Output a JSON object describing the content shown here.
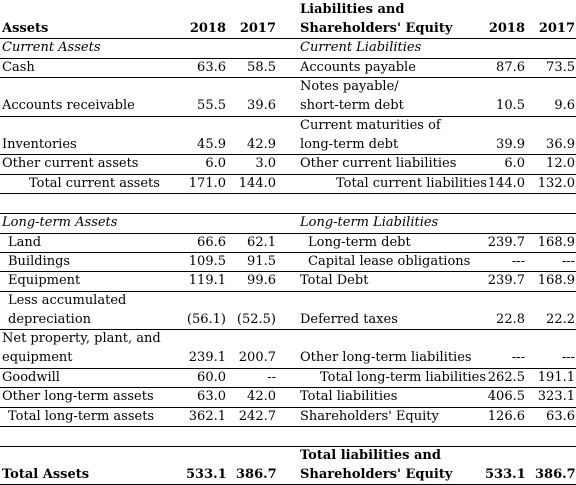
{
  "headers": {
    "assets": "Assets",
    "liab_line1": "Liabilities and",
    "liab_line2": "Shareholders' Equity",
    "y2018": "2018",
    "y2017": "2017"
  },
  "left_rows": [
    {
      "label": "Current Assets",
      "v18": "",
      "v17": ""
    },
    {
      "label": "Cash",
      "v18": "63.6",
      "v17": "58.5"
    },
    {
      "label": "Accounts receivable",
      "v18": "55.5",
      "v17": "39.6"
    },
    {
      "label": "Inventories",
      "v18": "45.9",
      "v17": "42.9"
    },
    {
      "label": "Other current assets",
      "v18": "6.0",
      "v17": "3.0"
    },
    {
      "label": "Total current assets",
      "v18": "171.0",
      "v17": "144.0"
    },
    {
      "label": "Long-term Assets",
      "v18": "",
      "v17": ""
    },
    {
      "label": "Land",
      "v18": "66.6",
      "v17": "62.1"
    },
    {
      "label": "Buildings",
      "v18": "109.5",
      "v17": "91.5"
    },
    {
      "label": "Equipment",
      "v18": "119.1",
      "v17": "99.6"
    },
    {
      "label": "Less accumulated",
      "v18": "",
      "v17": ""
    },
    {
      "label": "depreciation",
      "v18": "(56.1)",
      "v17": "(52.5)"
    },
    {
      "label": "Net property, plant, and",
      "v18": "",
      "v17": ""
    },
    {
      "label": "equipment",
      "v18": "239.1",
      "v17": "200.7"
    },
    {
      "label": "Goodwill",
      "v18": "60.0",
      "v17": "--"
    },
    {
      "label": "Other long-term assets",
      "v18": "63.0",
      "v17": "42.0"
    },
    {
      "label": "Total long-term assets",
      "v18": "362.1",
      "v17": "242.7"
    },
    {
      "label": "Total Assets",
      "v18": "533.1",
      "v17": "386.7"
    }
  ],
  "right_rows": [
    {
      "label": "Current Liabilities",
      "v18": "",
      "v17": ""
    },
    {
      "label": "Accounts payable",
      "v18": "87.6",
      "v17": "73.5"
    },
    {
      "label": "Notes payable/",
      "v18": "",
      "v17": ""
    },
    {
      "label": "short-term debt",
      "v18": "10.5",
      "v17": "9.6"
    },
    {
      "label": "Current maturities of",
      "v18": "",
      "v17": ""
    },
    {
      "label": "long-term debt",
      "v18": "39.9",
      "v17": "36.9"
    },
    {
      "label": "Other current liabilities",
      "v18": "6.0",
      "v17": "12.0"
    },
    {
      "label": "Total current liabilities",
      "v18": "144.0",
      "v17": "132.0"
    },
    {
      "label": "Long-term Liabilities",
      "v18": "",
      "v17": ""
    },
    {
      "label": "Long-term debt",
      "v18": "239.7",
      "v17": "168.9"
    },
    {
      "label": "Capital lease obligations",
      "v18": "---",
      "v17": "---"
    },
    {
      "label": "Total Debt",
      "v18": "239.7",
      "v17": "168.9"
    },
    {
      "label": "Deferred taxes",
      "v18": "22.8",
      "v17": "22.2"
    },
    {
      "label": "Other long-term liabilities",
      "v18": "---",
      "v17": "---"
    },
    {
      "label": "Total long-term liabilities",
      "v18": "262.5",
      "v17": "191.1"
    },
    {
      "label": "Total liabilities",
      "v18": "406.5",
      "v17": "323.1"
    },
    {
      "label": "Shareholders' Equity",
      "v18": "126.6",
      "v17": "63.6"
    },
    {
      "label": "Total liabilities and",
      "v18": "",
      "v17": ""
    },
    {
      "label": "Shareholders' Equity",
      "v18": "533.1",
      "v17": "386.7"
    }
  ]
}
